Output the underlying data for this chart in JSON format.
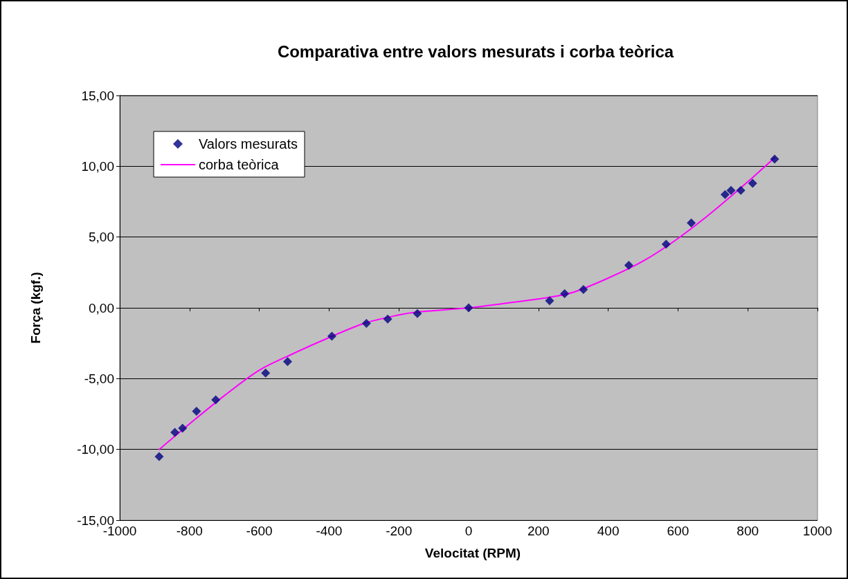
{
  "chart_data": {
    "type": "scatter",
    "title": "Comparativa entre valors mesurats i corba teòrica",
    "xlabel": "Velocitat (RPM)",
    "ylabel": "Força (kgf.)",
    "xlim": [
      -1000,
      1000
    ],
    "xticks": [
      -1000,
      -800,
      -600,
      -400,
      -200,
      0,
      200,
      400,
      600,
      800,
      1000
    ],
    "ylim": [
      -15,
      15
    ],
    "yticks": [
      {
        "value": -15,
        "label": "-15,00"
      },
      {
        "value": -10,
        "label": "-10,00"
      },
      {
        "value": -5,
        "label": "-5,00"
      },
      {
        "value": 0,
        "label": "0,00"
      },
      {
        "value": 5,
        "label": "5,00"
      },
      {
        "value": 10,
        "label": "10,00"
      },
      {
        "value": 15,
        "label": "15,00"
      }
    ],
    "grid": "y",
    "legend": "top left",
    "series": [
      {
        "name": "Valors mesurats",
        "marker": "diamond",
        "color": "#000080",
        "x": [
          -887,
          -842,
          -820,
          -780,
          -725,
          -582,
          -519,
          -392,
          -293,
          -232,
          -147,
          0,
          232,
          275,
          329,
          459,
          566,
          638,
          735,
          752,
          780,
          814,
          877
        ],
        "values": [
          -10.5,
          -8.8,
          -8.5,
          -7.3,
          -6.5,
          -4.6,
          -3.8,
          -2.0,
          -1.1,
          -0.8,
          -0.4,
          0,
          0.5,
          1.0,
          1.3,
          3.0,
          4.5,
          6.0,
          8.0,
          8.3,
          8.3,
          8.8,
          10.5
        ]
      },
      {
        "name": "corba teòrica",
        "type": "line",
        "marker": "none",
        "color": "#ff00ff",
        "x": [
          -887,
          -800,
          -700,
          -600,
          -500,
          -400,
          -300,
          -200,
          -150,
          0,
          100,
          232,
          300,
          400,
          500,
          600,
          700,
          800,
          877
        ],
        "values": [
          -10.0,
          -8.2,
          -6.2,
          -4.4,
          -3.2,
          -2.1,
          -1.1,
          -0.5,
          -0.3,
          0,
          0.3,
          0.75,
          1.1,
          2.1,
          3.3,
          4.9,
          6.8,
          8.9,
          10.6
        ]
      }
    ]
  }
}
